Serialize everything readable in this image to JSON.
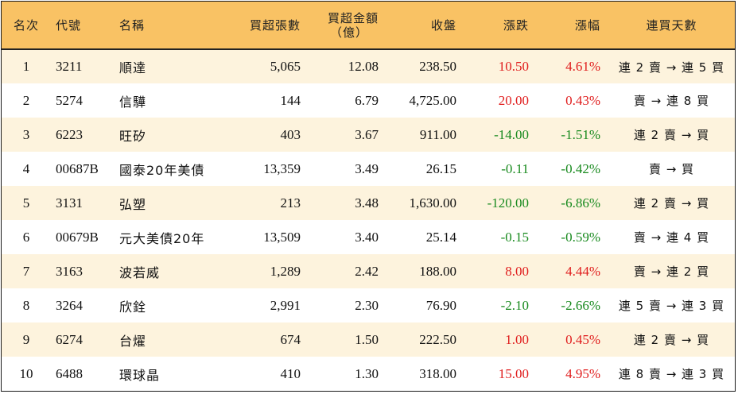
{
  "headers": {
    "rank": "名次",
    "code": "代號",
    "name": "名稱",
    "net_buy_lots": "買超張數",
    "net_buy_amount_line1": "買超金額",
    "net_buy_amount_line2": "（億）",
    "close": "收盤",
    "change": "漲跌",
    "change_pct": "漲幅",
    "streak": "連買天數"
  },
  "colors": {
    "header_bg": "#f9c264",
    "odd_row_bg": "#fdf3dd",
    "up": "#e01d1d",
    "down": "#188a1e"
  },
  "rows": [
    {
      "rank": "1",
      "code": "3211",
      "name": "順達",
      "lots": "5,065",
      "amount": "12.08",
      "close": "238.50",
      "change": "10.50",
      "pct": "4.61%",
      "dir": "up",
      "streak": "連 2 賣 → 連 5 買"
    },
    {
      "rank": "2",
      "code": "5274",
      "name": "信驊",
      "lots": "144",
      "amount": "6.79",
      "close": "4,725.00",
      "change": "20.00",
      "pct": "0.43%",
      "dir": "up",
      "streak": "賣 → 連 8 買"
    },
    {
      "rank": "3",
      "code": "6223",
      "name": "旺矽",
      "lots": "403",
      "amount": "3.67",
      "close": "911.00",
      "change": "-14.00",
      "pct": "-1.51%",
      "dir": "down",
      "streak": "連 2 賣 → 買"
    },
    {
      "rank": "4",
      "code": "00687B",
      "name": "國泰20年美債",
      "lots": "13,359",
      "amount": "3.49",
      "close": "26.15",
      "change": "-0.11",
      "pct": "-0.42%",
      "dir": "down",
      "streak": "賣 → 買"
    },
    {
      "rank": "5",
      "code": "3131",
      "name": "弘塑",
      "lots": "213",
      "amount": "3.48",
      "close": "1,630.00",
      "change": "-120.00",
      "pct": "-6.86%",
      "dir": "down",
      "streak": "連 2 賣 → 買"
    },
    {
      "rank": "6",
      "code": "00679B",
      "name": "元大美債20年",
      "lots": "13,509",
      "amount": "3.40",
      "close": "25.14",
      "change": "-0.15",
      "pct": "-0.59%",
      "dir": "down",
      "streak": "賣 → 連 4 買"
    },
    {
      "rank": "7",
      "code": "3163",
      "name": "波若威",
      "lots": "1,289",
      "amount": "2.42",
      "close": "188.00",
      "change": "8.00",
      "pct": "4.44%",
      "dir": "up",
      "streak": "賣 → 連 2 買"
    },
    {
      "rank": "8",
      "code": "3264",
      "name": "欣銓",
      "lots": "2,991",
      "amount": "2.30",
      "close": "76.90",
      "change": "-2.10",
      "pct": "-2.66%",
      "dir": "down",
      "streak": "連 5 賣 → 連 3 買"
    },
    {
      "rank": "9",
      "code": "6274",
      "name": "台燿",
      "lots": "674",
      "amount": "1.50",
      "close": "222.50",
      "change": "1.00",
      "pct": "0.45%",
      "dir": "up",
      "streak": "連 2 賣 → 買"
    },
    {
      "rank": "10",
      "code": "6488",
      "name": "環球晶",
      "lots": "410",
      "amount": "1.30",
      "close": "318.00",
      "change": "15.00",
      "pct": "4.95%",
      "dir": "up",
      "streak": "連 8 賣 → 連 3 買"
    }
  ]
}
